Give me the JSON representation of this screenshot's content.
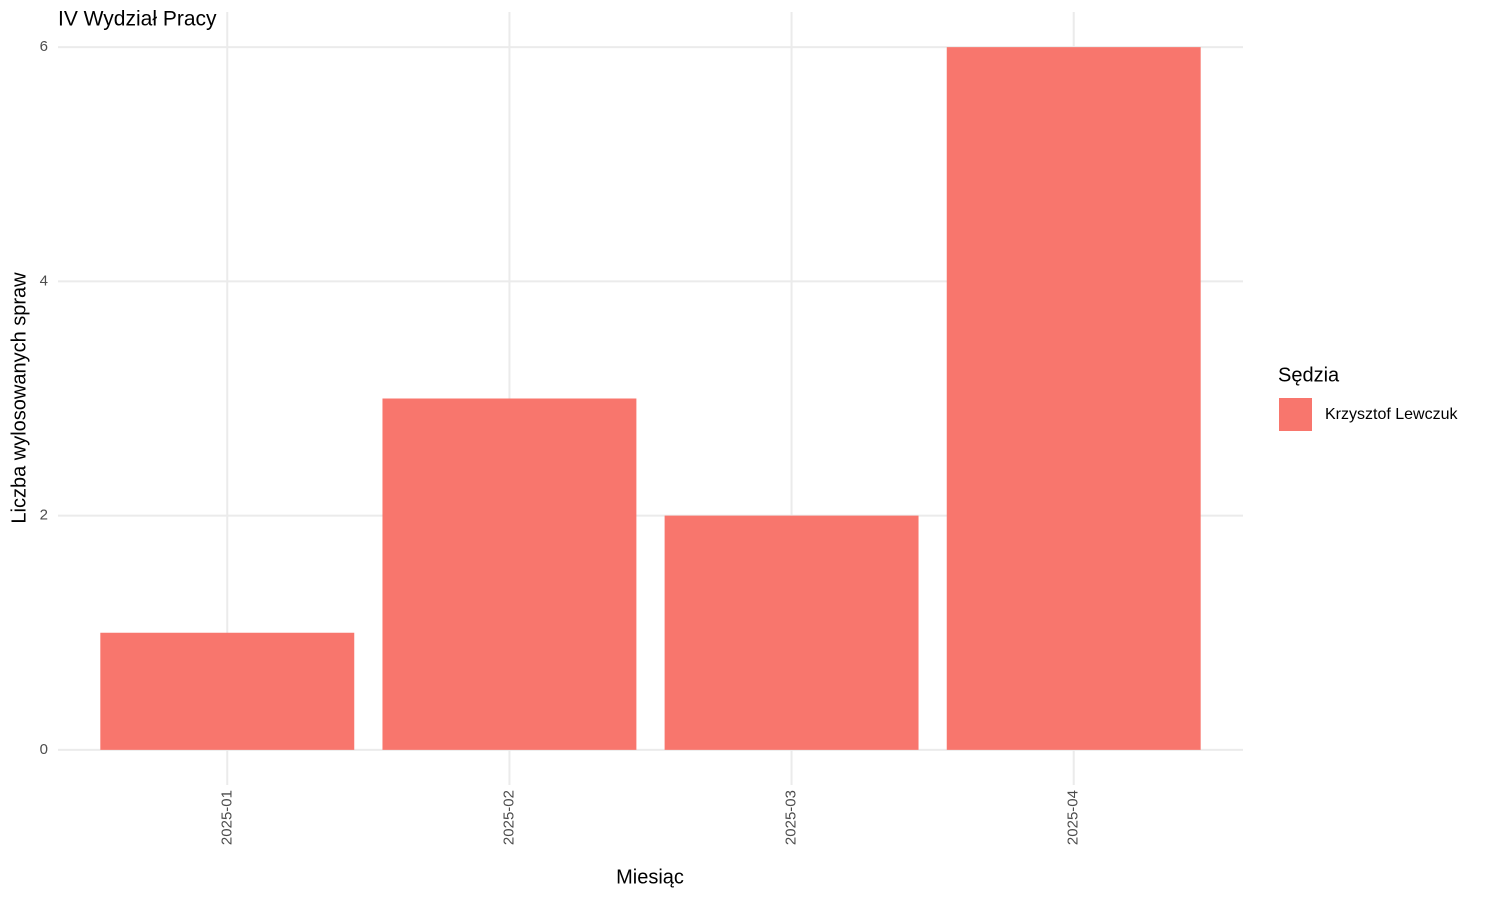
{
  "chart_data": {
    "type": "bar",
    "title": "IV Wydział Pracy",
    "x_label": "Miesiąc",
    "y_label": "Liczba wylosowanych spraw",
    "categories": [
      "2025-01",
      "2025-02",
      "2025-03",
      "2025-04"
    ],
    "series": [
      {
        "name": "Krzysztof Lewczuk",
        "color": "#f8766d",
        "values": [
          1,
          3,
          2,
          6
        ]
      }
    ],
    "legend_title": "Sędzia",
    "legend_position": "right",
    "ylim": [
      -0.3,
      6.3
    ],
    "yticks": [
      0,
      2,
      4,
      6
    ],
    "grid": true
  }
}
